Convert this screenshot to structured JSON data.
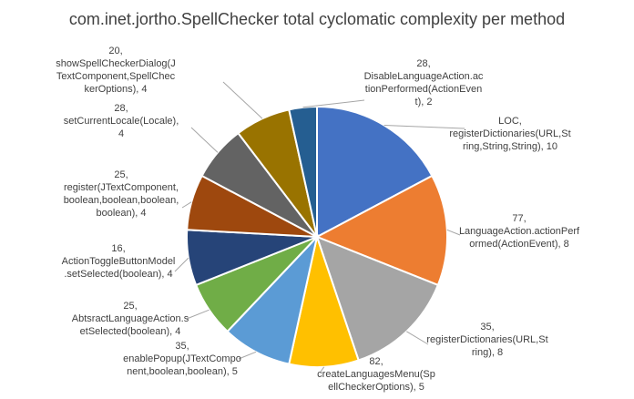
{
  "chart_data": {
    "type": "pie",
    "title": "com.inet.jortho.SpellChecker total cyclomatic complexity per method",
    "slices": [
      {
        "label_lines": [
          "LOC,",
          "registerDictionaries(URL,St",
          "ring,String,String), 10"
        ],
        "value": 10,
        "color": "#4472c4"
      },
      {
        "label_lines": [
          "77,",
          "LanguageAction.actionPerf",
          "ormed(ActionEvent), 8"
        ],
        "value": 8,
        "color": "#ed7d31"
      },
      {
        "label_lines": [
          "35,",
          "registerDictionaries(URL,St",
          "ring), 8"
        ],
        "value": 8,
        "color": "#a5a5a5"
      },
      {
        "label_lines": [
          "82,",
          "createLanguagesMenu(Sp",
          "ellCheckerOptions), 5"
        ],
        "value": 5,
        "color": "#ffc000"
      },
      {
        "label_lines": [
          "35,",
          "enablePopup(JTextCompo",
          "nent,boolean,boolean), 5"
        ],
        "value": 5,
        "color": "#5b9bd5"
      },
      {
        "label_lines": [
          "25,",
          "AbtsractLanguageAction.s",
          "etSelected(boolean), 4"
        ],
        "value": 4,
        "color": "#70ad47"
      },
      {
        "label_lines": [
          "16,",
          "ActionToggleButtonModel",
          ".setSelected(boolean), 4"
        ],
        "value": 4,
        "color": "#264478"
      },
      {
        "label_lines": [
          "25,",
          "register(JTextComponent,",
          "boolean,boolean,boolean,",
          "boolean), 4"
        ],
        "value": 4,
        "color": "#9e480e"
      },
      {
        "label_lines": [
          "28,",
          "setCurrentLocale(Locale),",
          "4"
        ],
        "value": 4,
        "color": "#636363"
      },
      {
        "label_lines": [
          "20,",
          "showSpellCheckerDialog(J",
          "TextComponent,SpellChec",
          "kerOptions), 4"
        ],
        "value": 4,
        "color": "#997300"
      },
      {
        "label_lines": [
          "28,",
          "DisableLanguageAction.ac",
          "tionPerformed(ActionEven",
          "t), 2"
        ],
        "value": 2,
        "color": "#255e91"
      }
    ]
  }
}
